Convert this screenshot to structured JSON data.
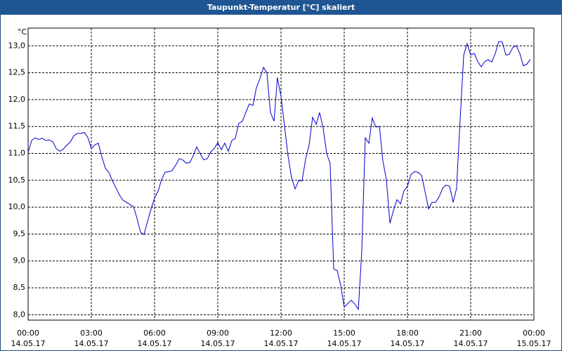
{
  "chart_data": {
    "type": "line",
    "title": "Taupunkt-Temperatur [°C] skaliert",
    "y_unit": "°C",
    "x": [
      0,
      0.17,
      0.33,
      0.5,
      0.67,
      0.83,
      1,
      1.17,
      1.33,
      1.5,
      1.67,
      1.83,
      2,
      2.17,
      2.33,
      2.5,
      2.67,
      2.83,
      3,
      3.17,
      3.33,
      3.5,
      3.67,
      3.83,
      4,
      4.17,
      4.33,
      4.5,
      4.67,
      4.83,
      5,
      5.17,
      5.33,
      5.5,
      5.67,
      5.83,
      6,
      6.17,
      6.33,
      6.5,
      6.67,
      6.83,
      7,
      7.17,
      7.33,
      7.5,
      7.67,
      7.83,
      8,
      8.17,
      8.33,
      8.5,
      8.67,
      8.83,
      9,
      9.17,
      9.33,
      9.5,
      9.67,
      9.83,
      10,
      10.17,
      10.33,
      10.5,
      10.67,
      10.83,
      11,
      11.17,
      11.33,
      11.5,
      11.67,
      11.83,
      12,
      12.17,
      12.33,
      12.5,
      12.67,
      12.83,
      13,
      13.17,
      13.33,
      13.5,
      13.67,
      13.83,
      14,
      14.17,
      14.33,
      14.5,
      14.67,
      14.83,
      15,
      15.17,
      15.33,
      15.5,
      15.67,
      15.83,
      16,
      16.17,
      16.33,
      16.5,
      16.67,
      16.83,
      17,
      17.17,
      17.33,
      17.5,
      17.67,
      17.83,
      18,
      18.17,
      18.33,
      18.5,
      18.67,
      18.83,
      19,
      19.17,
      19.33,
      19.5,
      19.67,
      19.83,
      20,
      20.17,
      20.33,
      20.5,
      20.67,
      20.83,
      21,
      21.17,
      21.33,
      21.5,
      21.67,
      21.83,
      22,
      22.17,
      22.33,
      22.5,
      22.67,
      22.83,
      23,
      23.17,
      23.33,
      23.5,
      23.67,
      23.83
    ],
    "series": [
      {
        "color": "#0000cc",
        "values": [
          11.02,
          11.24,
          11.29,
          11.26,
          11.28,
          11.24,
          11.25,
          11.22,
          11.09,
          11.04,
          11.08,
          11.15,
          11.21,
          11.33,
          11.37,
          11.37,
          11.39,
          11.3,
          11.09,
          11.16,
          11.19,
          10.94,
          10.72,
          10.65,
          10.49,
          10.36,
          10.23,
          10.13,
          10.09,
          10.05,
          10.01,
          9.79,
          9.54,
          9.49,
          9.74,
          9.96,
          10.17,
          10.3,
          10.51,
          10.65,
          10.66,
          10.68,
          10.78,
          10.9,
          10.88,
          10.82,
          10.83,
          10.95,
          11.12,
          10.99,
          10.88,
          10.9,
          11.03,
          11.09,
          11.2,
          11.07,
          11.19,
          11.04,
          11.24,
          11.28,
          11.56,
          11.6,
          11.76,
          11.92,
          11.89,
          12.22,
          12.39,
          12.6,
          12.5,
          11.76,
          11.6,
          12.41,
          12.06,
          11.5,
          10.96,
          10.55,
          10.34,
          10.49,
          10.49,
          10.9,
          11.15,
          11.67,
          11.54,
          11.76,
          11.47,
          10.99,
          10.82,
          8.85,
          8.82,
          8.55,
          8.14,
          8.21,
          8.27,
          8.2,
          8.1,
          9.16,
          11.29,
          11.19,
          11.66,
          11.49,
          11.5,
          10.87,
          10.51,
          9.7,
          9.93,
          10.14,
          10.06,
          10.3,
          10.39,
          10.61,
          10.66,
          10.65,
          10.59,
          10.3,
          9.97,
          10.09,
          10.09,
          10.19,
          10.35,
          10.41,
          10.39,
          10.09,
          10.35,
          11.63,
          12.83,
          13.04,
          12.83,
          12.86,
          12.71,
          12.61,
          12.71,
          12.74,
          12.7,
          12.86,
          13.08,
          13.07,
          12.83,
          12.84,
          12.97,
          13.0,
          12.86,
          12.63,
          12.66,
          12.75
        ]
      }
    ],
    "xlim": [
      0,
      24
    ],
    "xticks": [
      {
        "value": 0,
        "label": "00:00",
        "date": "14.05.17"
      },
      {
        "value": 3,
        "label": "03:00",
        "date": "14.05.17"
      },
      {
        "value": 6,
        "label": "06:00",
        "date": "14.05.17"
      },
      {
        "value": 9,
        "label": "09:00",
        "date": "14.05.17"
      },
      {
        "value": 12,
        "label": "12:00",
        "date": "14.05.17"
      },
      {
        "value": 15,
        "label": "15:00",
        "date": "14.05.17"
      },
      {
        "value": 18,
        "label": "18:00",
        "date": "14.05.17"
      },
      {
        "value": 21,
        "label": "21:00",
        "date": "14.05.17"
      },
      {
        "value": 24,
        "label": "00:00",
        "date": "15.05.17"
      }
    ],
    "ylim": [
      7.9,
      13.33
    ],
    "yticks": [
      {
        "value": 8,
        "label": "8,0"
      },
      {
        "value": 8.5,
        "label": "8,5"
      },
      {
        "value": 9,
        "label": "9,0"
      },
      {
        "value": 9.5,
        "label": "9,5"
      },
      {
        "value": 10,
        "label": "10,0"
      },
      {
        "value": 10.5,
        "label": "10,5"
      },
      {
        "value": 11,
        "label": "11,0"
      },
      {
        "value": 11.5,
        "label": "11,5"
      },
      {
        "value": 12,
        "label": "12,0"
      },
      {
        "value": 12.5,
        "label": "12,5"
      },
      {
        "value": 13,
        "label": "13,0"
      }
    ],
    "grid": true
  }
}
